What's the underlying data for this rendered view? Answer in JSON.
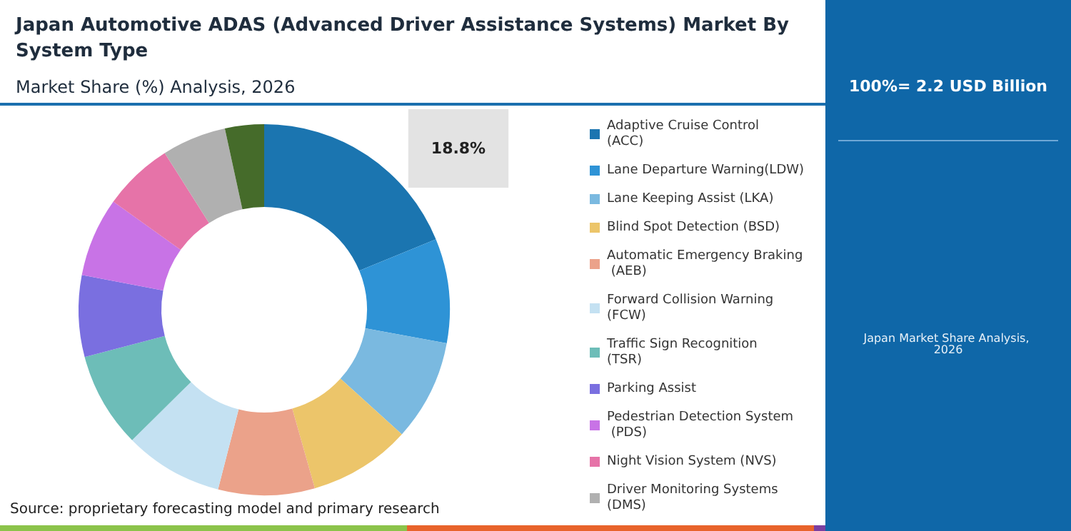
{
  "chart_data": {
    "type": "donut",
    "title": "Japan Automotive ADAS (Advanced Driver Assistance Systems) Market By System Type",
    "subtitle": "Market Share (%) Analysis, 2026",
    "categories": [
      "Adaptive Cruise Control (ACC)",
      "Lane Departure Warning(LDW)",
      "Lane Keeping Assist (LKA)",
      "Blind Spot Detection (BSD)",
      "Automatic Emergency Braking (AEB)",
      "Forward Collision Warning (FCW)",
      "Traffic Sign Recognition (TSR)",
      "Parking Assist",
      "Pedestrian Detection System (PDS)",
      "Night Vision System (NVS)",
      "Driver Monitoring Systems (DMS)",
      null
    ],
    "values": [
      18.8,
      9.1,
      8.8,
      8.9,
      8.4,
      8.6,
      8.3,
      7.1,
      6.9,
      6.1,
      5.6,
      3.4
    ],
    "colors": [
      "#1b75b0",
      "#2e93d6",
      "#7ab9e0",
      "#ecc56a",
      "#eba28a",
      "#c4e1f2",
      "#6dbdb8",
      "#7a6fe0",
      "#c873e6",
      "#e673a8",
      "#b0b0b0",
      "#456b2a"
    ],
    "value_labels": [
      "18.8%",
      null,
      null,
      null,
      null,
      null,
      null,
      null,
      null,
      null,
      null,
      null
    ],
    "legend": "right",
    "annotations": [
      "Source: proprietary forecasting model and primary research",
      "100%= 2.2 USD Billion",
      "Japan Market Share Analysis, 2026"
    ]
  }
}
